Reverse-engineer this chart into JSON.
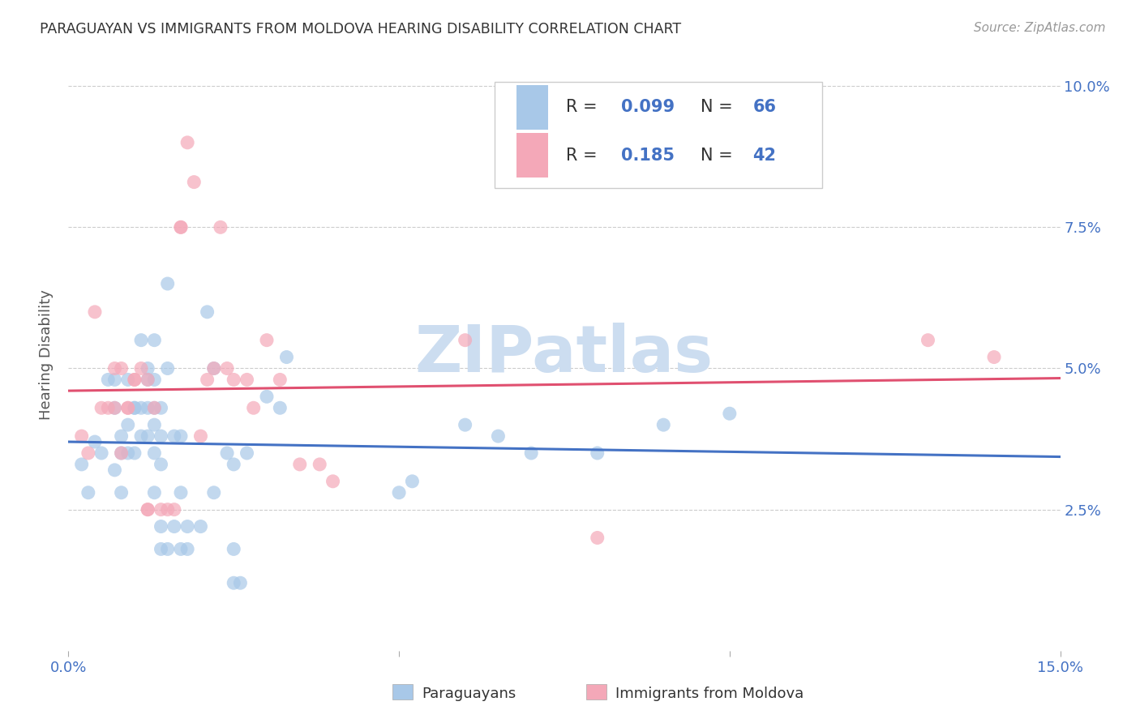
{
  "title": "PARAGUAYAN VS IMMIGRANTS FROM MOLDOVA HEARING DISABILITY CORRELATION CHART",
  "source": "Source: ZipAtlas.com",
  "ylabel": "Hearing Disability",
  "xlim": [
    0.0,
    0.15
  ],
  "ylim": [
    0.0,
    0.105
  ],
  "blue_color": "#a8c8e8",
  "pink_color": "#f4a8b8",
  "line_blue": "#4472c4",
  "line_pink": "#e05070",
  "blue_scatter": [
    [
      0.002,
      0.033
    ],
    [
      0.003,
      0.028
    ],
    [
      0.004,
      0.037
    ],
    [
      0.005,
      0.035
    ],
    [
      0.006,
      0.048
    ],
    [
      0.007,
      0.048
    ],
    [
      0.007,
      0.032
    ],
    [
      0.007,
      0.043
    ],
    [
      0.008,
      0.038
    ],
    [
      0.008,
      0.028
    ],
    [
      0.008,
      0.035
    ],
    [
      0.009,
      0.048
    ],
    [
      0.009,
      0.035
    ],
    [
      0.009,
      0.04
    ],
    [
      0.01,
      0.043
    ],
    [
      0.01,
      0.043
    ],
    [
      0.01,
      0.035
    ],
    [
      0.011,
      0.038
    ],
    [
      0.011,
      0.043
    ],
    [
      0.011,
      0.055
    ],
    [
      0.012,
      0.05
    ],
    [
      0.012,
      0.043
    ],
    [
      0.012,
      0.048
    ],
    [
      0.012,
      0.038
    ],
    [
      0.013,
      0.043
    ],
    [
      0.013,
      0.048
    ],
    [
      0.013,
      0.04
    ],
    [
      0.013,
      0.035
    ],
    [
      0.013,
      0.055
    ],
    [
      0.013,
      0.028
    ],
    [
      0.014,
      0.033
    ],
    [
      0.014,
      0.022
    ],
    [
      0.014,
      0.018
    ],
    [
      0.014,
      0.038
    ],
    [
      0.014,
      0.043
    ],
    [
      0.015,
      0.05
    ],
    [
      0.015,
      0.018
    ],
    [
      0.015,
      0.065
    ],
    [
      0.016,
      0.038
    ],
    [
      0.016,
      0.022
    ],
    [
      0.017,
      0.038
    ],
    [
      0.017,
      0.028
    ],
    [
      0.017,
      0.018
    ],
    [
      0.018,
      0.018
    ],
    [
      0.018,
      0.022
    ],
    [
      0.02,
      0.022
    ],
    [
      0.021,
      0.06
    ],
    [
      0.022,
      0.05
    ],
    [
      0.022,
      0.028
    ],
    [
      0.024,
      0.035
    ],
    [
      0.025,
      0.033
    ],
    [
      0.025,
      0.018
    ],
    [
      0.025,
      0.012
    ],
    [
      0.026,
      0.012
    ],
    [
      0.027,
      0.035
    ],
    [
      0.03,
      0.045
    ],
    [
      0.032,
      0.043
    ],
    [
      0.033,
      0.052
    ],
    [
      0.05,
      0.028
    ],
    [
      0.052,
      0.03
    ],
    [
      0.06,
      0.04
    ],
    [
      0.065,
      0.038
    ],
    [
      0.07,
      0.035
    ],
    [
      0.08,
      0.035
    ],
    [
      0.09,
      0.04
    ],
    [
      0.1,
      0.042
    ]
  ],
  "pink_scatter": [
    [
      0.002,
      0.038
    ],
    [
      0.003,
      0.035
    ],
    [
      0.004,
      0.06
    ],
    [
      0.005,
      0.043
    ],
    [
      0.006,
      0.043
    ],
    [
      0.007,
      0.043
    ],
    [
      0.007,
      0.05
    ],
    [
      0.008,
      0.035
    ],
    [
      0.008,
      0.05
    ],
    [
      0.009,
      0.043
    ],
    [
      0.009,
      0.043
    ],
    [
      0.01,
      0.048
    ],
    [
      0.01,
      0.048
    ],
    [
      0.011,
      0.05
    ],
    [
      0.012,
      0.025
    ],
    [
      0.012,
      0.025
    ],
    [
      0.012,
      0.048
    ],
    [
      0.013,
      0.043
    ],
    [
      0.014,
      0.025
    ],
    [
      0.015,
      0.025
    ],
    [
      0.016,
      0.025
    ],
    [
      0.017,
      0.075
    ],
    [
      0.017,
      0.075
    ],
    [
      0.018,
      0.09
    ],
    [
      0.019,
      0.083
    ],
    [
      0.02,
      0.038
    ],
    [
      0.021,
      0.048
    ],
    [
      0.022,
      0.05
    ],
    [
      0.023,
      0.075
    ],
    [
      0.024,
      0.05
    ],
    [
      0.025,
      0.048
    ],
    [
      0.027,
      0.048
    ],
    [
      0.028,
      0.043
    ],
    [
      0.03,
      0.055
    ],
    [
      0.032,
      0.048
    ],
    [
      0.035,
      0.033
    ],
    [
      0.038,
      0.033
    ],
    [
      0.04,
      0.03
    ],
    [
      0.06,
      0.055
    ],
    [
      0.08,
      0.02
    ],
    [
      0.13,
      0.055
    ],
    [
      0.14,
      0.052
    ]
  ],
  "watermark": "ZIPatlas",
  "watermark_color": "#ccddf0",
  "legend_text_black": "R = ",
  "legend_blue1": "0.099",
  "legend_n1_label": "N = ",
  "legend_n1_val": "66",
  "legend_blue2": "0.185",
  "legend_n2_val": "42"
}
